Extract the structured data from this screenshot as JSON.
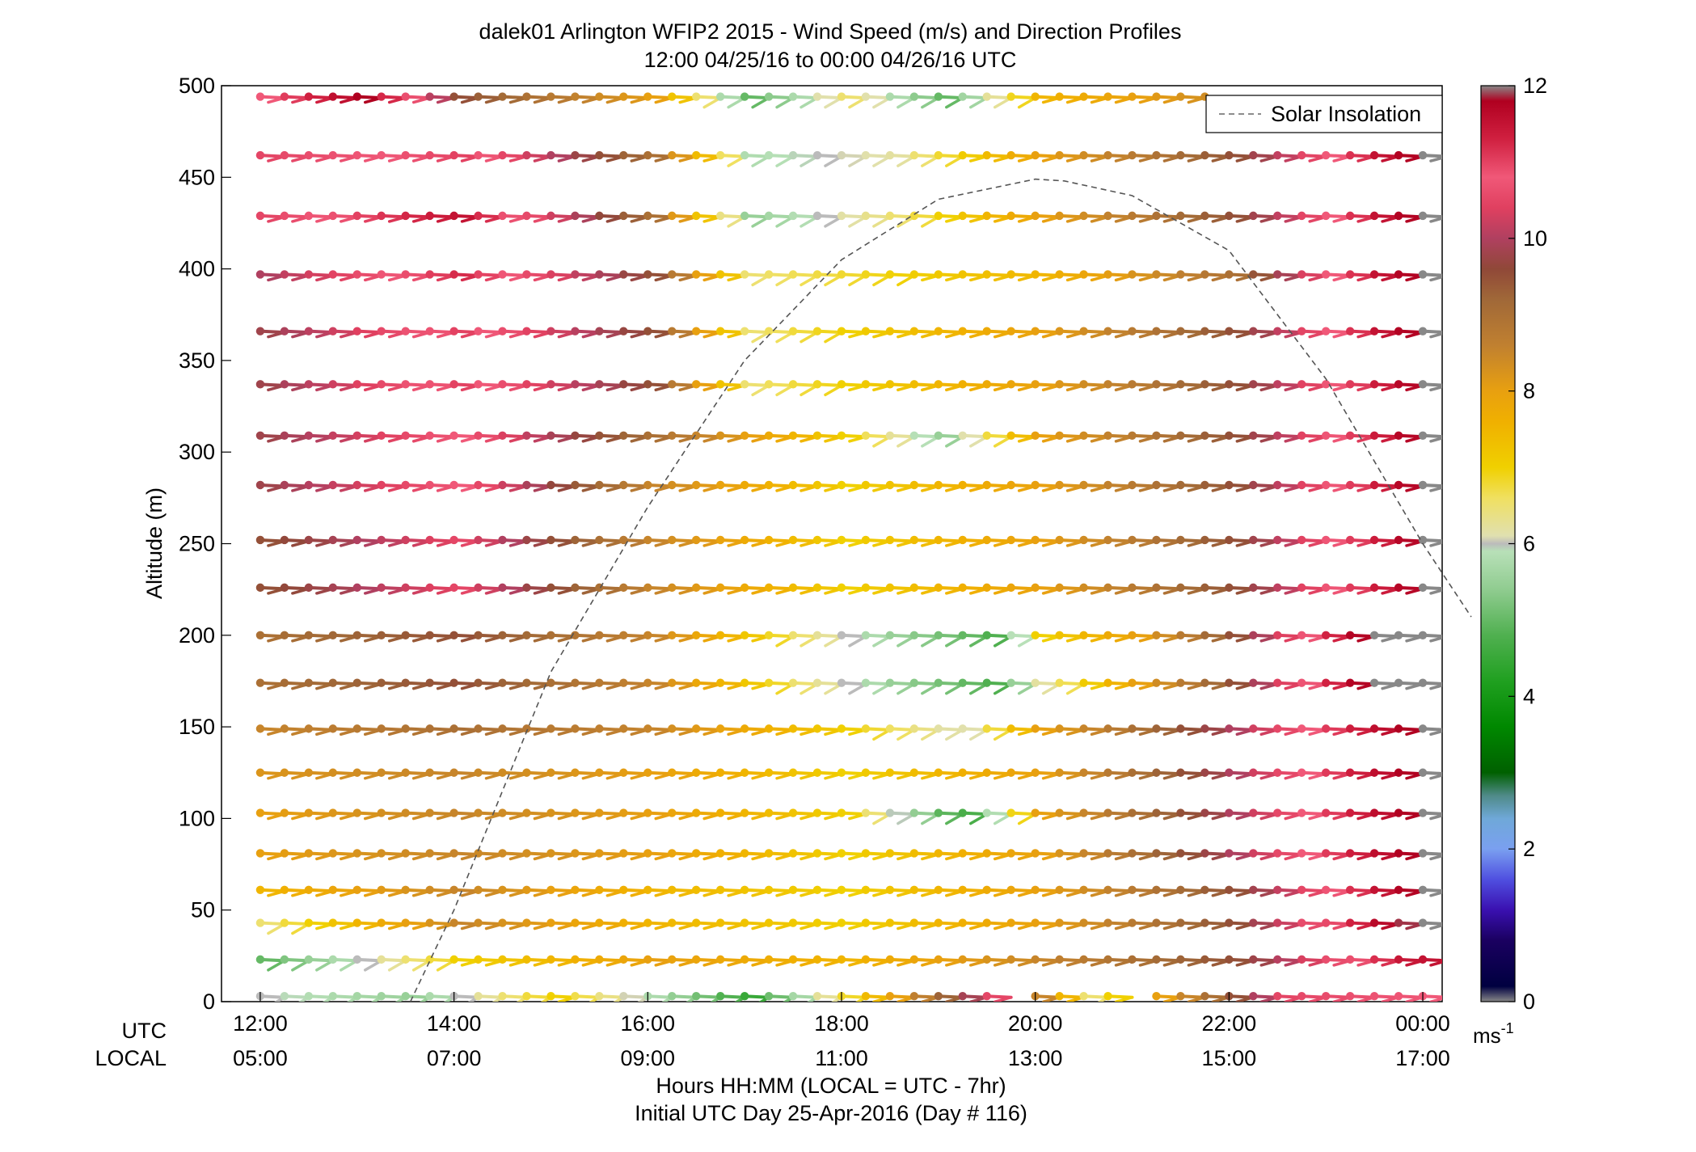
{
  "chart_data": {
    "type": "wind_barb_profile",
    "title": "dalek01 Arlington WFIP2 2015 - Wind Speed (m/s) and Direction Profiles",
    "subtitle": "12:00 04/25/16 to 00:00 04/26/16  UTC",
    "ylabel": "Altitude (m)",
    "xlabel": "Hours HH:MM  (LOCAL = UTC - 7hr)",
    "xlabel2": "Initial UTC Day 25-Apr-2016 (Day # 116)",
    "x_row_label_utc": "UTC",
    "x_row_label_local": "LOCAL",
    "xlim_hours_utc": [
      11.6,
      24.2
    ],
    "ylim": [
      0,
      500
    ],
    "yticks": [
      0,
      50,
      100,
      150,
      200,
      250,
      300,
      350,
      400,
      450,
      500
    ],
    "xticks": [
      {
        "hour": 12,
        "utc": "12:00",
        "local": "05:00"
      },
      {
        "hour": 14,
        "utc": "14:00",
        "local": "07:00"
      },
      {
        "hour": 16,
        "utc": "16:00",
        "local": "09:00"
      },
      {
        "hour": 18,
        "utc": "18:00",
        "local": "11:00"
      },
      {
        "hour": 20,
        "utc": "20:00",
        "local": "13:00"
      },
      {
        "hour": 22,
        "utc": "22:00",
        "local": "15:00"
      },
      {
        "hour": 24,
        "utc": "00:00",
        "local": "17:00"
      }
    ],
    "altitudes_m": [
      3,
      23,
      43,
      61,
      81,
      103,
      125,
      149,
      174,
      200,
      226,
      252,
      282,
      309,
      337,
      366,
      397,
      429,
      462,
      494
    ],
    "time_start_hour": 12,
    "time_step_hours": 0.25,
    "time_steps": 48,
    "speed_profiles_ms": [
      [
        [
          12.0,
          6.0
        ],
        [
          13.5,
          5.5
        ],
        [
          15.0,
          7.0
        ],
        [
          17.0,
          4.5
        ],
        [
          18.5,
          8.0
        ],
        [
          19.5,
          10.5
        ],
        [
          20.5,
          6.5
        ],
        [
          21.5,
          8.5
        ],
        [
          22.5,
          10.5
        ],
        [
          24.0,
          10.8
        ]
      ],
      [
        [
          12.0,
          5.0
        ],
        [
          14.0,
          7.0
        ],
        [
          16.0,
          8.0
        ],
        [
          18.0,
          7.5
        ],
        [
          20.0,
          8.5
        ],
        [
          22.0,
          9.5
        ],
        [
          23.8,
          11.5
        ]
      ],
      [
        [
          12.0,
          6.5
        ],
        [
          14.0,
          8.5
        ],
        [
          16.0,
          7.5
        ],
        [
          18.0,
          7.0
        ],
        [
          20.0,
          8.0
        ],
        [
          22.0,
          9.5
        ],
        [
          23.6,
          11.8
        ],
        [
          24.0,
          12.0
        ]
      ],
      [
        [
          12.0,
          7.5
        ],
        [
          14.0,
          8.5
        ],
        [
          16.0,
          7.5
        ],
        [
          18.0,
          7.0
        ],
        [
          20.0,
          8.0
        ],
        [
          22.0,
          9.5
        ],
        [
          23.5,
          11.5
        ],
        [
          24.0,
          12.0
        ]
      ],
      [
        [
          12.0,
          8.0
        ],
        [
          14.0,
          8.5
        ],
        [
          16.0,
          8.0
        ],
        [
          18.0,
          7.0
        ],
        [
          20.0,
          8.0
        ],
        [
          22.0,
          10.0
        ],
        [
          23.4,
          11.5
        ],
        [
          24.0,
          12.0
        ]
      ],
      [
        [
          12.0,
          8.0
        ],
        [
          14.0,
          8.5
        ],
        [
          16.0,
          8.0
        ],
        [
          18.0,
          7.0
        ],
        [
          19.2,
          4.5
        ],
        [
          20.0,
          8.0
        ],
        [
          22.0,
          10.0
        ],
        [
          23.4,
          11.5
        ],
        [
          24.0,
          12.0
        ]
      ],
      [
        [
          12.0,
          8.2
        ],
        [
          14.0,
          8.5
        ],
        [
          16.0,
          8.0
        ],
        [
          18.0,
          7.0
        ],
        [
          20.0,
          8.0
        ],
        [
          22.0,
          10.0
        ],
        [
          23.4,
          11.5
        ],
        [
          24.0,
          12.0
        ]
      ],
      [
        [
          12.0,
          8.5
        ],
        [
          14.0,
          9.0
        ],
        [
          16.0,
          8.5
        ],
        [
          18.0,
          7.0
        ],
        [
          19.2,
          6.0
        ],
        [
          20.0,
          8.0
        ],
        [
          22.0,
          10.0
        ],
        [
          23.4,
          11.5
        ],
        [
          24.0,
          12.0
        ]
      ],
      [
        [
          12.0,
          9.0
        ],
        [
          14.0,
          9.5
        ],
        [
          16.0,
          8.5
        ],
        [
          17.5,
          6.5
        ],
        [
          18.5,
          5.5
        ],
        [
          19.5,
          4.8
        ],
        [
          20.0,
          6.2
        ],
        [
          21.0,
          8.0
        ],
        [
          22.0,
          9.5
        ],
        [
          23.4,
          12.0
        ],
        [
          24.0,
          12.0
        ]
      ],
      [
        [
          12.0,
          9.0
        ],
        [
          14.0,
          9.5
        ],
        [
          16.0,
          8.5
        ],
        [
          17.5,
          6.5
        ],
        [
          18.5,
          5.5
        ],
        [
          19.5,
          4.8
        ],
        [
          20.0,
          7.0
        ],
        [
          21.0,
          8.0
        ],
        [
          22.0,
          9.5
        ],
        [
          23.4,
          12.0
        ],
        [
          24.0,
          12.0
        ]
      ],
      [
        [
          12.0,
          9.5
        ],
        [
          14.0,
          10.5
        ],
        [
          16.0,
          8.5
        ],
        [
          18.0,
          7.0
        ],
        [
          20.0,
          8.0
        ],
        [
          22.0,
          9.5
        ],
        [
          23.2,
          11.0
        ],
        [
          24.0,
          12.0
        ]
      ],
      [
        [
          12.0,
          9.5
        ],
        [
          14.0,
          10.5
        ],
        [
          16.0,
          8.5
        ],
        [
          18.0,
          7.0
        ],
        [
          20.0,
          8.0
        ],
        [
          22.0,
          9.5
        ],
        [
          23.2,
          11.0
        ],
        [
          24.0,
          12.0
        ]
      ],
      [
        [
          12.0,
          9.8
        ],
        [
          14.0,
          10.8
        ],
        [
          16.0,
          8.5
        ],
        [
          18.0,
          7.0
        ],
        [
          20.0,
          8.0
        ],
        [
          22.0,
          9.5
        ],
        [
          23.2,
          11.0
        ],
        [
          24.0,
          12.0
        ]
      ],
      [
        [
          12.0,
          9.8
        ],
        [
          14.0,
          10.8
        ],
        [
          16.0,
          9.0
        ],
        [
          18.0,
          7.0
        ],
        [
          19.0,
          5.5
        ],
        [
          20.0,
          8.0
        ],
        [
          22.0,
          9.5
        ],
        [
          23.2,
          11.0
        ],
        [
          24.0,
          12.0
        ]
      ],
      [
        [
          12.0,
          9.8
        ],
        [
          14.0,
          11.0
        ],
        [
          16.0,
          9.5
        ],
        [
          17.0,
          6.5
        ],
        [
          18.0,
          7.0
        ],
        [
          20.0,
          8.0
        ],
        [
          22.0,
          9.5
        ],
        [
          23.2,
          11.0
        ],
        [
          24.0,
          12.0
        ]
      ],
      [
        [
          12.0,
          9.8
        ],
        [
          14.0,
          11.0
        ],
        [
          16.0,
          9.5
        ],
        [
          17.0,
          6.5
        ],
        [
          18.0,
          7.0
        ],
        [
          20.0,
          8.0
        ],
        [
          22.0,
          9.5
        ],
        [
          23.0,
          10.8
        ],
        [
          23.5,
          11.5
        ],
        [
          24.0,
          12.0
        ]
      ],
      [
        [
          12.0,
          10.0
        ],
        [
          14.0,
          11.2
        ],
        [
          16.0,
          9.5
        ],
        [
          17.0,
          6.5
        ],
        [
          18.0,
          6.8
        ],
        [
          20.0,
          7.5
        ],
        [
          22.0,
          9.0
        ],
        [
          23.0,
          10.8
        ],
        [
          23.5,
          11.5
        ],
        [
          24.0,
          12.0
        ]
      ],
      [
        [
          12.0,
          10.5
        ],
        [
          14.0,
          11.5
        ],
        [
          16.0,
          9.0
        ],
        [
          17.0,
          5.5
        ],
        [
          18.5,
          6.5
        ],
        [
          20.0,
          8.0
        ],
        [
          22.0,
          9.5
        ],
        [
          23.0,
          10.8
        ],
        [
          23.5,
          11.5
        ],
        [
          24.0,
          12.0
        ]
      ],
      [
        [
          12.0,
          10.5
        ],
        [
          14.0,
          11.0
        ],
        [
          16.0,
          9.0
        ],
        [
          17.0,
          5.8
        ],
        [
          18.5,
          6.2
        ],
        [
          20.0,
          8.0
        ],
        [
          22.0,
          9.5
        ],
        [
          23.0,
          10.8
        ],
        [
          23.5,
          11.5
        ],
        [
          24.0,
          12.0
        ]
      ],
      [
        [
          12.0,
          10.8
        ],
        [
          13.0,
          11.8
        ],
        [
          14.0,
          9.5
        ],
        [
          16.0,
          8.0
        ],
        [
          17.0,
          5.0
        ],
        [
          18.0,
          6.5
        ],
        [
          19.0,
          5.0
        ],
        [
          20.0,
          7.5
        ],
        [
          22.0,
          8.5
        ]
      ]
    ],
    "gaps": [
      {
        "altitude_index": 0,
        "from_hour": 19.6,
        "to_hour": 19.8
      },
      {
        "altitude_index": 0,
        "from_hour": 20.9,
        "to_hour": 21.2
      },
      {
        "altitude_index": 0,
        "from_hour": 23.85,
        "to_hour": 23.95
      },
      {
        "altitude_index": 19,
        "from_hour": 22.0,
        "to_hour": 24.2
      }
    ],
    "barb_direction_note": "direction from W-SW; barbs drawn as short tilted strokes",
    "series": [
      {
        "name": "Solar Insolation",
        "type": "line",
        "style": "dashed",
        "x_hours_utc": [
          13.55,
          14.0,
          15.0,
          16.0,
          17.0,
          18.0,
          19.0,
          20.0,
          20.3,
          21.0,
          22.0,
          23.0,
          24.0,
          24.5
        ],
        "y_altitude_equivalent": [
          0,
          50,
          180,
          270,
          350,
          405,
          438,
          449,
          448,
          440,
          410,
          340,
          250,
          210
        ]
      }
    ],
    "legend": {
      "entries": [
        "Solar Insolation"
      ],
      "placement": "top-right"
    },
    "colorbar": {
      "range": [
        0,
        12
      ],
      "ticks": [
        0,
        2,
        4,
        6,
        8,
        10,
        12
      ],
      "unit_label": "ms",
      "unit_superscript": "-1",
      "stops": [
        [
          0.0,
          "#888888"
        ],
        [
          0.2,
          "#000040"
        ],
        [
          0.8,
          "#1a0060"
        ],
        [
          1.2,
          "#3a10b0"
        ],
        [
          1.6,
          "#4f4fe0"
        ],
        [
          2.0,
          "#7aa0f0"
        ],
        [
          2.4,
          "#6fa8d8"
        ],
        [
          2.7,
          "#4f8a88"
        ],
        [
          3.0,
          "#006000"
        ],
        [
          3.6,
          "#008800"
        ],
        [
          4.2,
          "#20a020"
        ],
        [
          4.8,
          "#50b050"
        ],
        [
          5.4,
          "#90cc90"
        ],
        [
          5.9,
          "#b8e0b8"
        ],
        [
          6.0,
          "#bbbbbb"
        ],
        [
          6.1,
          "#e0e0b0"
        ],
        [
          6.6,
          "#f0e060"
        ],
        [
          7.0,
          "#f0d000"
        ],
        [
          7.6,
          "#f0b000"
        ],
        [
          8.0,
          "#e8a010"
        ],
        [
          8.6,
          "#c08030"
        ],
        [
          9.2,
          "#a06838"
        ],
        [
          9.6,
          "#904838"
        ],
        [
          10.0,
          "#b04060"
        ],
        [
          10.4,
          "#e04060"
        ],
        [
          10.8,
          "#f05878"
        ],
        [
          11.3,
          "#d02040"
        ],
        [
          11.8,
          "#b00020"
        ],
        [
          12.0,
          "#888888"
        ]
      ]
    }
  }
}
